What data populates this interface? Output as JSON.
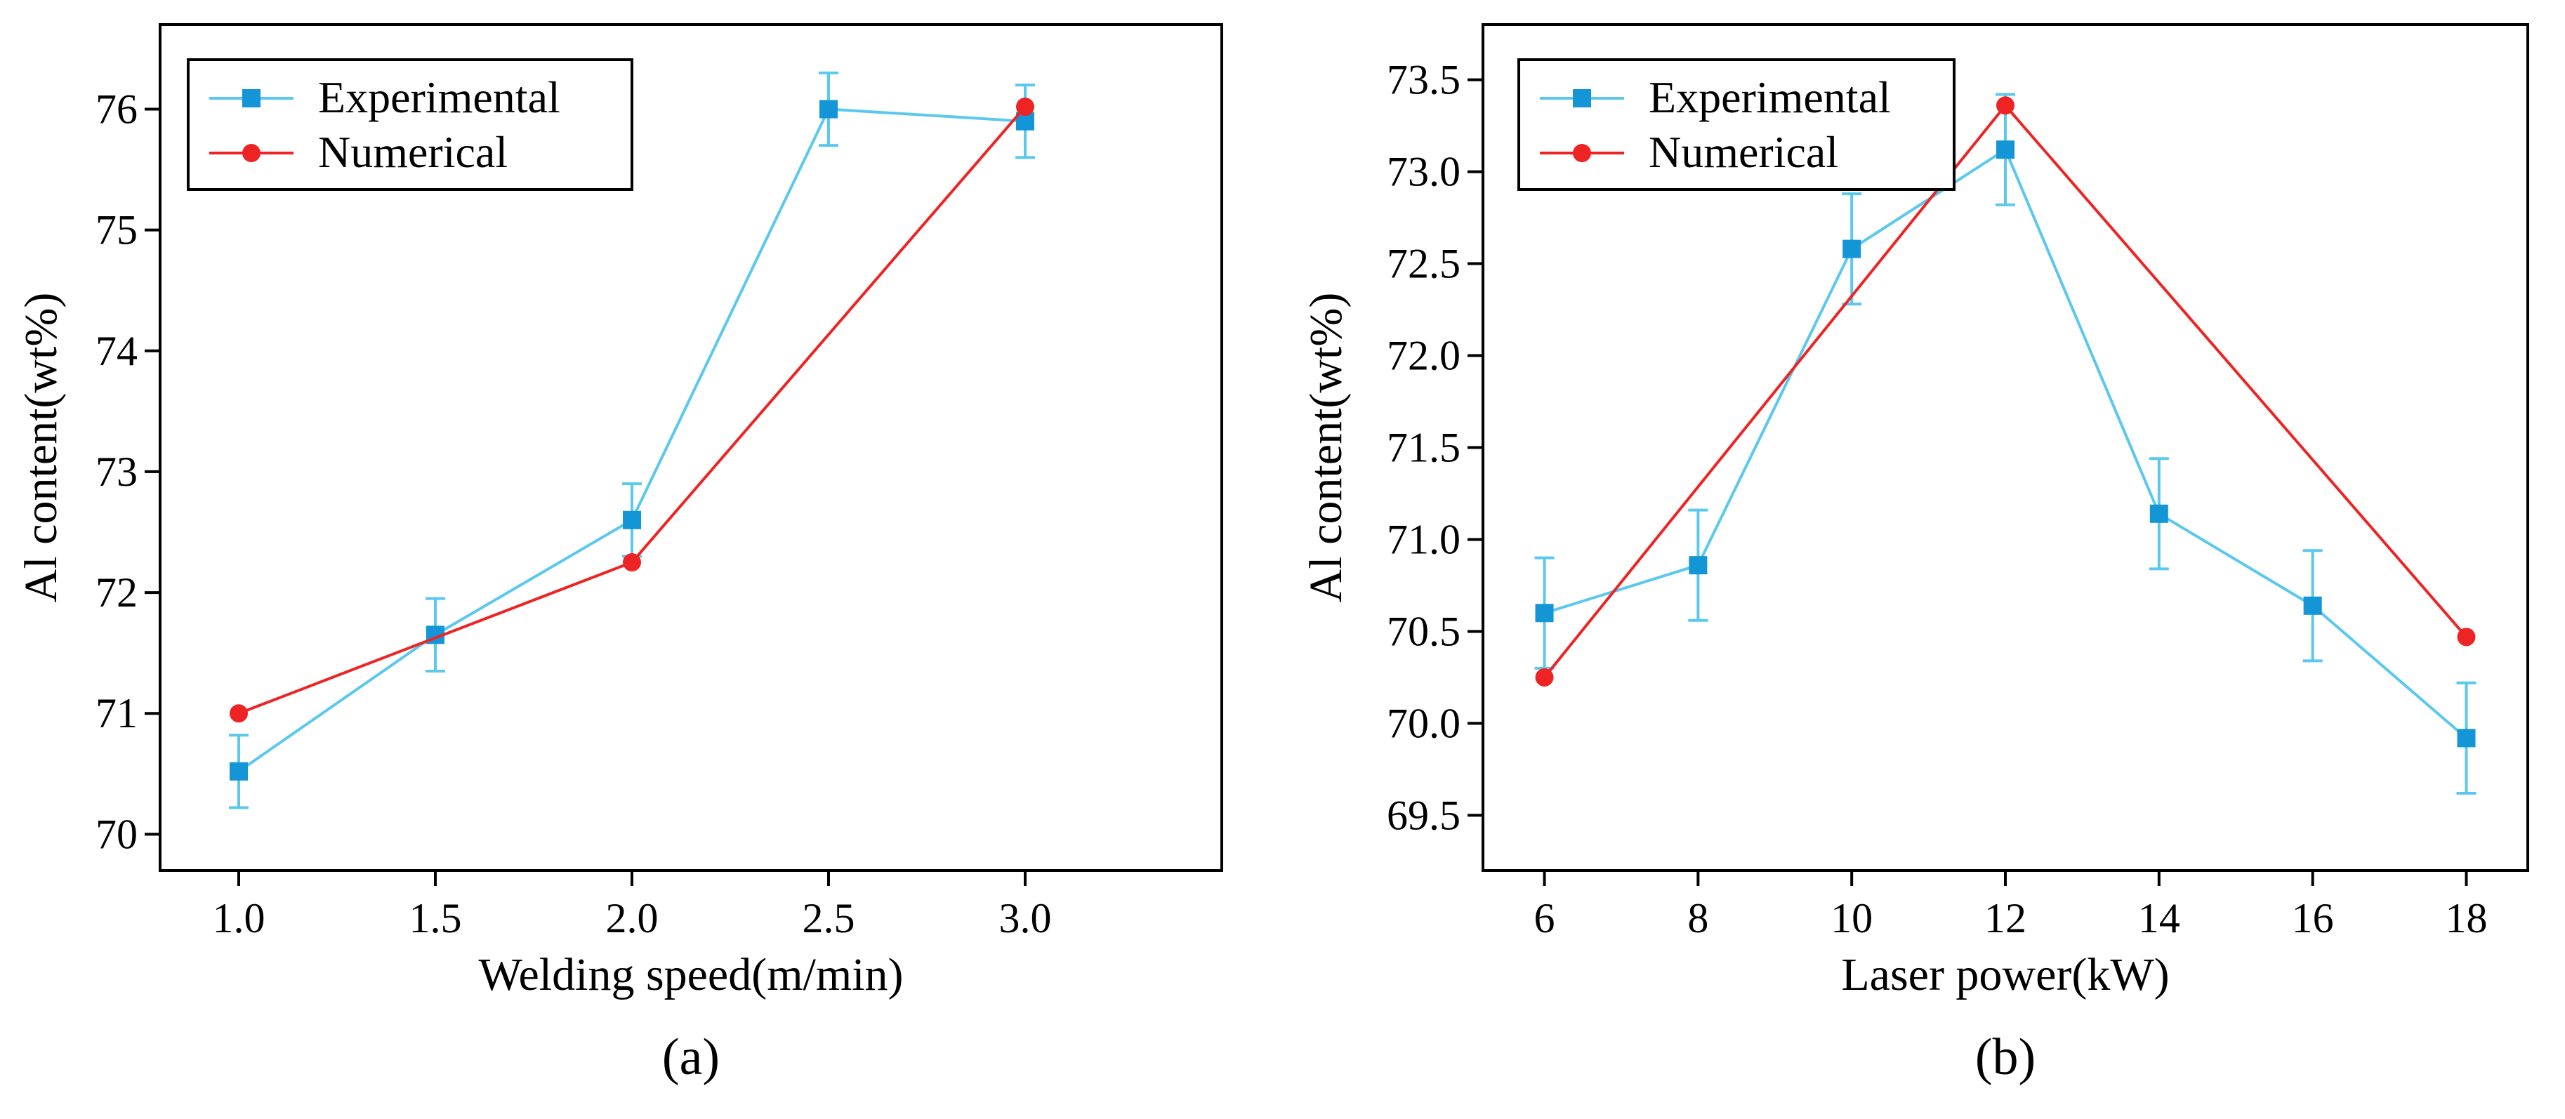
{
  "chart_data": [
    {
      "type": "line",
      "panel_label": "(a)",
      "xlabel": "Welding speed(m/min)",
      "ylabel": "Al content(wt%)",
      "xlim": [
        0.8,
        3.5
      ],
      "ylim": [
        69.7,
        76.7
      ],
      "xticks": [
        1.0,
        1.5,
        2.0,
        2.5,
        3.0
      ],
      "xtick_labels": [
        "1.0",
        "1.5",
        "2.0",
        "2.5",
        "3.0"
      ],
      "yticks": [
        70,
        71,
        72,
        73,
        74,
        75,
        76
      ],
      "ytick_labels": [
        "70",
        "71",
        "72",
        "73",
        "74",
        "75",
        "76"
      ],
      "legend_position": "top-left",
      "grid": false,
      "series": [
        {
          "name": "Experimental",
          "color": "#5bc8ee",
          "marker_color": "#1495d6",
          "marker": "square",
          "x": [
            1.0,
            1.5,
            2.0,
            2.5,
            3.0
          ],
          "y": [
            70.52,
            71.65,
            72.6,
            76.0,
            75.9
          ],
          "error": [
            0.3,
            0.3,
            0.3,
            0.3,
            0.3
          ]
        },
        {
          "name": "Numerical",
          "color": "#ee2424",
          "marker_color": "#ee2424",
          "marker": "circle",
          "x": [
            1.0,
            2.0,
            3.0
          ],
          "y": [
            71.0,
            72.25,
            76.02
          ]
        }
      ]
    },
    {
      "type": "line",
      "panel_label": "(b)",
      "xlabel": "Laser power(kW)",
      "ylabel": "Al content(wt%)",
      "xlim": [
        5.2,
        18.8
      ],
      "ylim": [
        69.2,
        73.8
      ],
      "xticks": [
        6,
        8,
        10,
        12,
        14,
        16,
        18
      ],
      "xtick_labels": [
        "6",
        "8",
        "10",
        "12",
        "14",
        "16",
        "18"
      ],
      "yticks": [
        69.5,
        70.0,
        70.5,
        71.0,
        71.5,
        72.0,
        72.5,
        73.0,
        73.5
      ],
      "ytick_labels": [
        "69.5",
        "70.0",
        "70.5",
        "71.0",
        "71.5",
        "72.0",
        "72.5",
        "73.0",
        "73.5"
      ],
      "legend_position": "top-left",
      "grid": false,
      "series": [
        {
          "name": "Experimental",
          "color": "#5bc8ee",
          "marker_color": "#1495d6",
          "marker": "square",
          "x": [
            6,
            8,
            10,
            12,
            14,
            16,
            18
          ],
          "y": [
            70.6,
            70.86,
            72.58,
            73.12,
            71.14,
            70.64,
            69.92
          ],
          "error": [
            0.3,
            0.3,
            0.3,
            0.3,
            0.3,
            0.3,
            0.3
          ]
        },
        {
          "name": "Numerical",
          "color": "#ee2424",
          "marker_color": "#ee2424",
          "marker": "circle",
          "x": [
            6,
            12,
            18
          ],
          "y": [
            70.25,
            73.36,
            70.47
          ]
        }
      ]
    }
  ]
}
